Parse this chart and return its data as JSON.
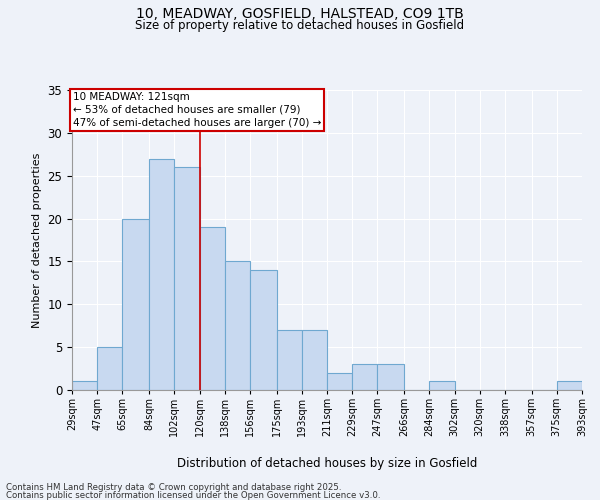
{
  "title1": "10, MEADWAY, GOSFIELD, HALSTEAD, CO9 1TB",
  "title2": "Size of property relative to detached houses in Gosfield",
  "xlabel": "Distribution of detached houses by size in Gosfield",
  "ylabel": "Number of detached properties",
  "bins": [
    29,
    47,
    65,
    84,
    102,
    120,
    138,
    156,
    175,
    193,
    211,
    229,
    247,
    266,
    284,
    302,
    320,
    338,
    357,
    375,
    393
  ],
  "counts": [
    1,
    5,
    20,
    27,
    26,
    19,
    15,
    14,
    7,
    7,
    2,
    3,
    3,
    0,
    1,
    0,
    0,
    0,
    0,
    1
  ],
  "bar_color": "#c8d9f0",
  "bar_edge_color": "#6fa8d0",
  "vline_x": 120,
  "vline_color": "#cc0000",
  "annotation_line1": "10 MEADWAY: 121sqm",
  "annotation_line2": "← 53% of detached houses are smaller (79)",
  "annotation_line3": "47% of semi-detached houses are larger (70) →",
  "annotation_box_color": "#cc0000",
  "ylim": [
    0,
    35
  ],
  "yticks": [
    0,
    5,
    10,
    15,
    20,
    25,
    30,
    35
  ],
  "background_color": "#eef2f9",
  "grid_color": "#ffffff",
  "footer1": "Contains HM Land Registry data © Crown copyright and database right 2025.",
  "footer2": "Contains public sector information licensed under the Open Government Licence v3.0.",
  "tick_labels": [
    "29sqm",
    "47sqm",
    "65sqm",
    "84sqm",
    "102sqm",
    "120sqm",
    "138sqm",
    "156sqm",
    "175sqm",
    "193sqm",
    "211sqm",
    "229sqm",
    "247sqm",
    "266sqm",
    "284sqm",
    "302sqm",
    "320sqm",
    "338sqm",
    "357sqm",
    "375sqm",
    "393sqm"
  ]
}
